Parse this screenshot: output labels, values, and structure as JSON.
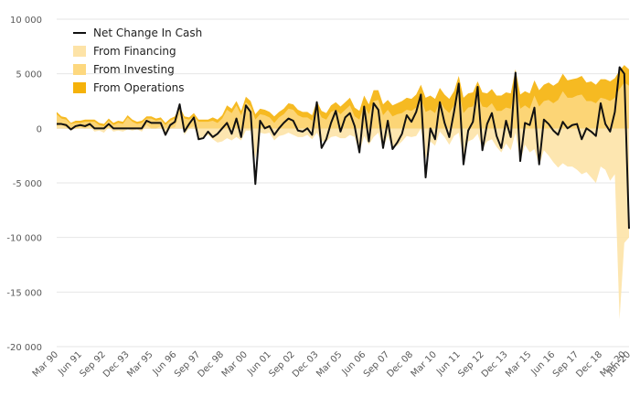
{
  "chart_data": {
    "type": "area",
    "title": "",
    "xlabel": "",
    "ylabel": "",
    "ylim": [
      -20000,
      10000
    ],
    "yticks": [
      10000,
      5000,
      0,
      -5000,
      -10000,
      -15000,
      -20000
    ],
    "ytick_labels": [
      "10 000",
      "5 000",
      "0",
      "-5 000",
      "-10 000",
      "-15 000",
      "-20 000"
    ],
    "xtick_labels": [
      "Mar 90",
      "Jun 91",
      "Sep 92",
      "Dec 93",
      "Mar 95",
      "Jun 96",
      "Sep 97",
      "Dec 98",
      "Mar 00",
      "Jun 01",
      "Sep 02",
      "Dec 03",
      "Mar 05",
      "Jun 06",
      "Sep 07",
      "Dec 08",
      "Mar 10",
      "Jun 11",
      "Sep 12",
      "Dec 13",
      "Mar 15",
      "Jun 16",
      "Sep 17",
      "Dec 18",
      "Mar 20",
      "Jun 20"
    ],
    "grid": true,
    "legend_position": "top-left",
    "quarters": 122,
    "start_quarter": "Mar 90",
    "series": [
      {
        "name": "Net Change In Cash",
        "kind": "line",
        "color": "#111111",
        "values": [
          400,
          400,
          300,
          -100,
          200,
          300,
          200,
          400,
          0,
          0,
          0,
          400,
          0,
          0,
          0,
          0,
          0,
          0,
          0,
          700,
          500,
          500,
          500,
          -600,
          300,
          600,
          2200,
          -300,
          400,
          1000,
          -1000,
          -900,
          -300,
          -800,
          -500,
          0,
          500,
          -500,
          900,
          -800,
          2100,
          1500,
          -5100,
          700,
          0,
          200,
          -600,
          0,
          500,
          900,
          700,
          -200,
          -300,
          0,
          -600,
          2400,
          -1800,
          -1000,
          500,
          1600,
          -300,
          1000,
          1400,
          200,
          -2200,
          2000,
          -1200,
          2300,
          1700,
          -1800,
          700,
          -1900,
          -1300,
          -500,
          1200,
          600,
          1500,
          3100,
          -4500,
          0,
          -1000,
          2400,
          500,
          -800,
          1500,
          4100,
          -3300,
          -200,
          600,
          3800,
          -2000,
          400,
          1400,
          -700,
          -1800,
          700,
          -800,
          5100,
          -3000,
          500,
          300,
          1900,
          -3300,
          800,
          400,
          -200,
          -600,
          600,
          0,
          300,
          400,
          -1000,
          0,
          -300,
          -700,
          2300,
          400,
          -300,
          1500,
          5600,
          5000,
          -9200
        ]
      },
      {
        "name": "From Financing",
        "kind": "area",
        "color": "#fde3a7",
        "values": [
          200,
          300,
          100,
          -200,
          0,
          100,
          0,
          200,
          -300,
          -200,
          -400,
          100,
          -300,
          -200,
          -300,
          -100,
          -200,
          -100,
          -300,
          300,
          0,
          0,
          200,
          -700,
          0,
          100,
          1300,
          -600,
          0,
          200,
          -900,
          -800,
          -600,
          -1000,
          -1300,
          -1200,
          -900,
          -1100,
          -800,
          -1100,
          -200,
          -200,
          -2800,
          -400,
          -500,
          -400,
          -1100,
          -700,
          -600,
          -400,
          -600,
          -800,
          -800,
          -600,
          -1000,
          -400,
          -1200,
          -1200,
          -800,
          -700,
          -900,
          -900,
          -600,
          -800,
          -2200,
          -700,
          -1500,
          -800,
          -400,
          -1800,
          -700,
          -1800,
          -1600,
          -1200,
          -700,
          -800,
          -700,
          0,
          -2800,
          -1200,
          -1600,
          -300,
          -800,
          -1500,
          -700,
          -400,
          -2800,
          -1200,
          -1000,
          -500,
          -1900,
          -1200,
          -1000,
          -1700,
          -2200,
          -1400,
          -2000,
          -400,
          -3000,
          -1500,
          -2200,
          -1900,
          -3400,
          -2000,
          -2500,
          -3100,
          -3600,
          -3200,
          -3500,
          -3500,
          -3800,
          -4200,
          -4000,
          -4500,
          -5000,
          -3500,
          -3800,
          -4800,
          -4200,
          -17500,
          -10500,
          -10000
        ]
      },
      {
        "name": "From Investing",
        "kind": "area",
        "color": "#fdd87f",
        "values": [
          1300,
          900,
          800,
          400,
          500,
          500,
          600,
          600,
          600,
          300,
          200,
          700,
          300,
          500,
          400,
          1000,
          600,
          400,
          500,
          900,
          900,
          700,
          800,
          300,
          700,
          900,
          1800,
          900,
          800,
          1100,
          600,
          600,
          600,
          700,
          500,
          900,
          1700,
          1400,
          2100,
          1200,
          2400,
          2000,
          800,
          1300,
          1200,
          1000,
          500,
          1000,
          1300,
          1800,
          1700,
          1200,
          1000,
          1000,
          700,
          1900,
          1000,
          800,
          1500,
          1700,
          1300,
          1700,
          2100,
          1100,
          800,
          2100,
          1300,
          2500,
          2600,
          1200,
          1700,
          1100,
          1300,
          1400,
          1700,
          1600,
          1900,
          2700,
          1500,
          1700,
          1400,
          2500,
          1800,
          1400,
          2100,
          3400,
          1400,
          1900,
          2000,
          3000,
          2000,
          1900,
          2300,
          1600,
          1600,
          1900,
          1800,
          3800,
          1800,
          2100,
          1800,
          3000,
          2000,
          2500,
          2600,
          2300,
          2600,
          3400,
          2800,
          2800,
          3000,
          3100,
          2500,
          2500,
          2300,
          2800,
          2700,
          2500,
          2800,
          3600,
          4200,
          3900
        ]
      },
      {
        "name": "From Operations",
        "kind": "area",
        "color": "#f5b20a",
        "values": [
          1500,
          1100,
          1000,
          500,
          700,
          700,
          800,
          800,
          800,
          500,
          400,
          900,
          500,
          700,
          600,
          1200,
          800,
          600,
          700,
          1100,
          1100,
          900,
          1000,
          500,
          900,
          1100,
          2000,
          1100,
          1000,
          1400,
          800,
          800,
          800,
          1000,
          800,
          1200,
          2100,
          1800,
          2500,
          1600,
          2900,
          2500,
          1300,
          1800,
          1700,
          1500,
          1100,
          1500,
          1800,
          2300,
          2200,
          1700,
          1500,
          1500,
          1200,
          2500,
          1600,
          1400,
          2100,
          2400,
          2000,
          2400,
          2800,
          1900,
          1600,
          3000,
          2200,
          3500,
          3500,
          2200,
          2600,
          2100,
          2300,
          2500,
          2800,
          2700,
          3100,
          4000,
          2800,
          3000,
          2700,
          3700,
          3100,
          2700,
          3400,
          4800,
          2800,
          3200,
          3300,
          4300,
          3300,
          3200,
          3600,
          3000,
          3000,
          3300,
          3200,
          5400,
          3100,
          3400,
          3200,
          4400,
          3500,
          4000,
          4200,
          3900,
          4200,
          5000,
          4400,
          4500,
          4600,
          4800,
          4200,
          4300,
          4000,
          4500,
          4500,
          4300,
          4600,
          5300,
          5800,
          5400
        ]
      }
    ]
  }
}
